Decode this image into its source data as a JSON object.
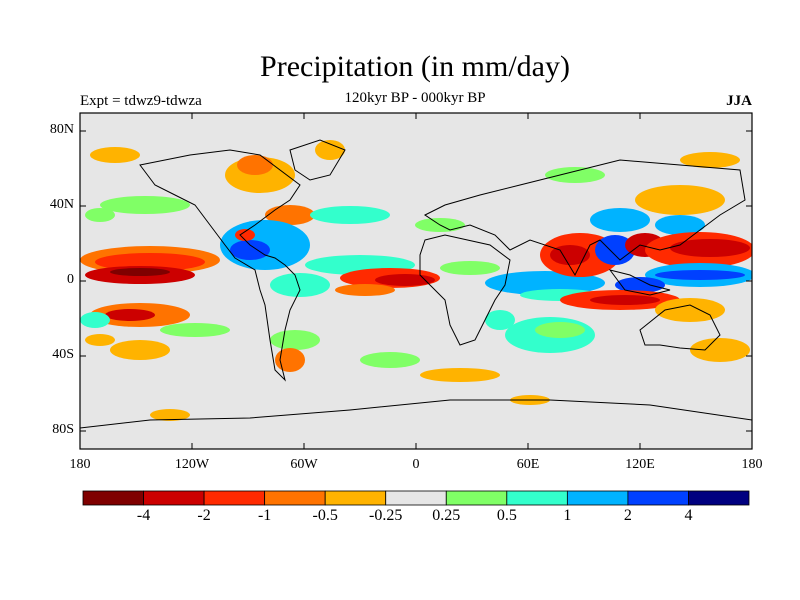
{
  "title": "Precipitation (in mm/day)",
  "subtitle": "120kyr BP - 000kyr BP",
  "left_label": "Expt = tdwz9-tdwza",
  "right_label": "JJA",
  "y_ticks": [
    "80N",
    "40N",
    "0",
    "40S",
    "80S"
  ],
  "x_ticks": [
    "180",
    "120W",
    "60W",
    "0",
    "60E",
    "120E",
    "180"
  ],
  "colorbar": {
    "colors": [
      "#7f0000",
      "#cc0000",
      "#ff2a00",
      "#ff7300",
      "#ffb300",
      "#e6e6e6",
      "#80ff66",
      "#33ffcc",
      "#00b3ff",
      "#0040ff",
      "#000080"
    ],
    "labels": [
      "-4",
      "-2",
      "-1",
      "-0.5",
      "-0.25",
      "0.25",
      "0.5",
      "1",
      "2",
      "4"
    ]
  }
}
